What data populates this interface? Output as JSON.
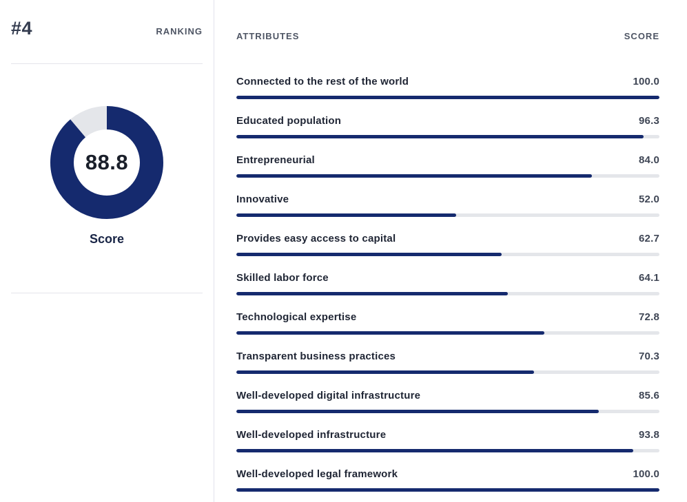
{
  "colors": {
    "navy": "#152a6e",
    "track_gray": "#e4e6ea",
    "divider_gray": "#e4e4ea",
    "header_slate": "#4e5564",
    "label_dark": "#202635",
    "score_value_gray": "#3f4655"
  },
  "left": {
    "rank": "#4",
    "ranking_label": "RANKING",
    "score": "88.8",
    "score_label": "Score"
  },
  "right": {
    "attributes_header": "ATTRIBUTES",
    "score_header": "SCORE",
    "attributes": [
      {
        "label": "Connected to the rest of the world",
        "score": "100.0",
        "value": 100.0
      },
      {
        "label": "Educated population",
        "score": "96.3",
        "value": 96.3
      },
      {
        "label": "Entrepreneurial",
        "score": "84.0",
        "value": 84.0
      },
      {
        "label": "Innovative",
        "score": "52.0",
        "value": 52.0
      },
      {
        "label": "Provides easy access to capital",
        "score": "62.7",
        "value": 62.7
      },
      {
        "label": "Skilled labor force",
        "score": "64.1",
        "value": 64.1
      },
      {
        "label": "Technological expertise",
        "score": "72.8",
        "value": 72.8
      },
      {
        "label": "Transparent business practices",
        "score": "70.3",
        "value": 70.3
      },
      {
        "label": "Well-developed digital infrastructure",
        "score": "85.6",
        "value": 85.6
      },
      {
        "label": "Well-developed infrastructure",
        "score": "93.8",
        "value": 93.8
      },
      {
        "label": "Well-developed legal framework",
        "score": "100.0",
        "value": 100.0
      }
    ]
  },
  "chart_data": [
    {
      "type": "pie",
      "subtype": "donut-gauge",
      "title": "Score",
      "labels": [
        "Score",
        "Remaining"
      ],
      "values": [
        88.8,
        11.2
      ],
      "center_label": "88.8",
      "colors": [
        "#152a6e",
        "#e4e6ea"
      ],
      "start_angle_deg": 0,
      "direction": "clockwise"
    },
    {
      "type": "bar",
      "orientation": "horizontal",
      "title": "Attribute scores",
      "categories": [
        "Connected to the rest of the world",
        "Educated population",
        "Entrepreneurial",
        "Innovative",
        "Provides easy access to capital",
        "Skilled labor force",
        "Technological expertise",
        "Transparent business practices",
        "Well-developed digital infrastructure",
        "Well-developed infrastructure",
        "Well-developed legal framework"
      ],
      "values": [
        100.0,
        96.3,
        84.0,
        52.0,
        62.7,
        64.1,
        72.8,
        70.3,
        85.6,
        93.8,
        100.0
      ],
      "xlim": [
        0,
        100
      ],
      "grid": false,
      "legend": false,
      "bar_color": "#152a6e",
      "track_color": "#e4e6ea"
    }
  ]
}
